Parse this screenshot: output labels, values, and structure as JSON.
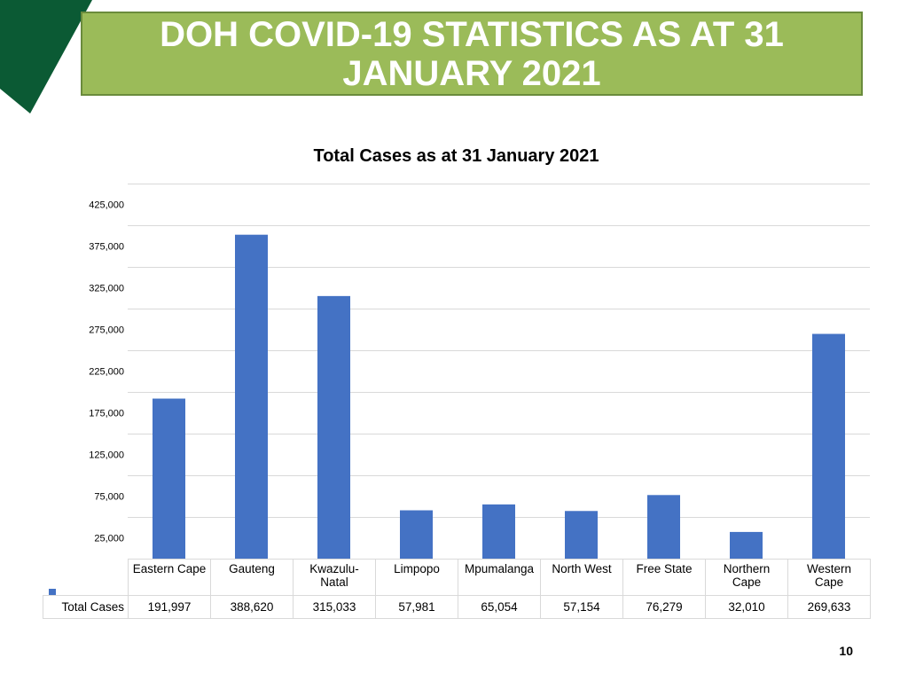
{
  "slide": {
    "title": "DOH COVID-19 STATISTICS AS AT 31 JANUARY 2021",
    "page_number": "10",
    "colors": {
      "title_bg": "#9bbb59",
      "title_text": "#ffffff",
      "corner_accent": "#0b5a34",
      "bar": "#4472c4"
    }
  },
  "chart_data": {
    "type": "bar",
    "title": "Total Cases as at 31 January 2021",
    "categories": [
      "Eastern Cape",
      "Gauteng",
      "Kwazulu-Natal",
      "Limpopo",
      "Mpumalanga",
      "North West",
      "Free State",
      "Northern Cape",
      "Western Cape"
    ],
    "category_labels": [
      [
        "Eastern Cape"
      ],
      [
        "Gauteng"
      ],
      [
        "Kwazulu-",
        "Natal"
      ],
      [
        "Limpopo"
      ],
      [
        "Mpumalanga"
      ],
      [
        "North West"
      ],
      [
        "Free State"
      ],
      [
        "Northern",
        "Cape"
      ],
      [
        "Western",
        "Cape"
      ]
    ],
    "series": [
      {
        "name": "Total Cases",
        "values": [
          191997,
          388620,
          315033,
          57981,
          65054,
          57154,
          76279,
          32010,
          269633
        ]
      }
    ],
    "value_labels": [
      "191,997",
      "388,620",
      "315,033",
      "57,981",
      "65,054",
      "57,154",
      "76,279",
      "32,010",
      "269,633"
    ],
    "ylim": [
      0,
      450000
    ],
    "yticks": [
      25000,
      75000,
      125000,
      175000,
      225000,
      275000,
      325000,
      375000,
      425000
    ],
    "ytick_labels": [
      "25,000",
      "75,000",
      "125,000",
      "175,000",
      "225,000",
      "275,000",
      "325,000",
      "375,000",
      "425,000"
    ],
    "gridlines": [
      0,
      50000,
      100000,
      150000,
      200000,
      250000,
      300000,
      350000,
      400000,
      450000
    ],
    "grid": true,
    "legend": "data-table"
  }
}
